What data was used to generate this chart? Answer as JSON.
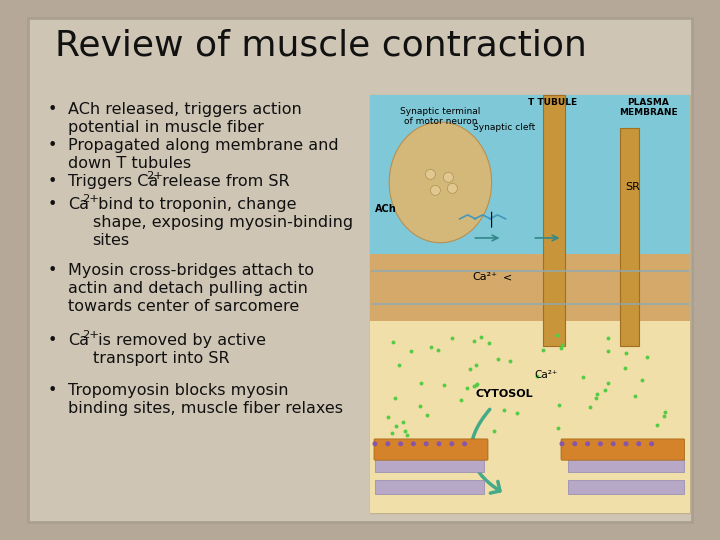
{
  "title": "Review of muscle contraction",
  "title_fontsize": 26,
  "title_color": "#111111",
  "bullet_fontsize": 11.5,
  "bullet_color": "#111111",
  "background_slide": "#b5a898",
  "background_inner": "#cec5b5",
  "img_bg": "#e8ddc0",
  "img_blue": "#7ec8d8",
  "img_tan": "#d4a96a",
  "img_cytosol": "#f0dfa8",
  "bullet_entries": [
    {
      "has_super": false,
      "text": "ACh released, triggers action\npotential in muscle fiber"
    },
    {
      "has_super": false,
      "text": "Propagated along membrane and\ndown T tubules"
    },
    {
      "has_super": true,
      "pre": "Triggers Ca",
      "sup": "2+",
      "post": " release from SR"
    },
    {
      "has_super": true,
      "pre": "Ca",
      "sup": "2+",
      "post": " bind to troponin, change\nshape, exposing myosin-binding\nsites"
    },
    {
      "has_super": false,
      "text": "Myosin cross-bridges attach to\nactin and detach pulling actin\ntowards center of sarcomere"
    },
    {
      "has_super": true,
      "pre": "Ca",
      "sup": "2+",
      "post": " is removed by active\ntransport into SR"
    },
    {
      "has_super": false,
      "text": "Tropomyosin blocks myosin\nbinding sites, muscle fiber relaxes"
    }
  ]
}
